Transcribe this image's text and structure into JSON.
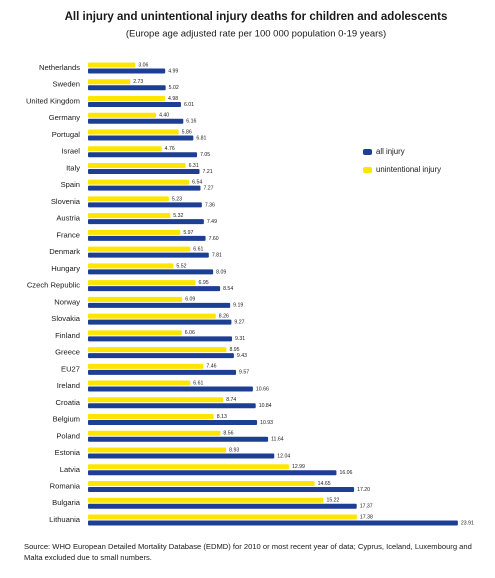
{
  "chart_data": {
    "type": "bar",
    "orientation": "horizontal",
    "title": "All injury and unintentional injury deaths for children and adolescents",
    "subtitle": "(Europe age adjusted rate per 100 000 population 0-19 years)",
    "source": "Source: WHO European Detailed Mortality Database (EDMD) for 2010 or most recent year of data; Cyprus, Iceland, Luxembourg and Malta excluded due to small numbers.",
    "categories": [
      "Netherlands",
      "Sweden",
      "United Kingdom",
      "Germany",
      "Portugal",
      "Israel",
      "Italy",
      "Spain",
      "Slovenia",
      "Austria",
      "France",
      "Denmark",
      "Hungary",
      "Czech Republic",
      "Norway",
      "Slovakia",
      "Finland",
      "Greece",
      "EU27",
      "Ireland",
      "Croatia",
      "Belgium",
      "Poland",
      "Estonia",
      "Latvia",
      "Romania",
      "Bulgaria",
      "Lithuania"
    ],
    "series": [
      {
        "name": "all injury",
        "color": "#1c3f94",
        "values": [
          4.99,
          5.02,
          6.01,
          6.16,
          6.81,
          7.05,
          7.21,
          7.27,
          7.36,
          7.49,
          7.6,
          7.81,
          8.09,
          8.54,
          9.19,
          9.27,
          9.31,
          9.43,
          9.57,
          10.66,
          10.84,
          10.93,
          11.64,
          12.04,
          16.06,
          17.2,
          17.37,
          23.91
        ],
        "value_labels": [
          "4.99",
          "5.02",
          "6.01",
          "6.16",
          "6.81",
          "7.05",
          "7.21",
          "7.27",
          "7.36",
          "7.49",
          "7.60",
          "7.81",
          "8.09",
          "8.54",
          "9.19",
          "9.27",
          "9.31",
          "9.43",
          "9.57",
          "10.66",
          "10.84",
          "10.93",
          "11.64",
          "12.04",
          "16.06",
          "17.20",
          "17.37",
          "23.91"
        ]
      },
      {
        "name": "unintentional injury",
        "color": "#ffe500",
        "values": [
          3.06,
          2.73,
          4.98,
          4.4,
          5.86,
          4.76,
          6.31,
          6.54,
          5.23,
          5.32,
          5.97,
          6.61,
          5.52,
          6.95,
          6.09,
          8.26,
          6.06,
          8.95,
          7.46,
          6.61,
          8.74,
          8.13,
          8.56,
          8.93,
          12.99,
          14.65,
          15.22,
          17.38
        ],
        "value_labels": [
          "3.06",
          "2.73",
          "4.98",
          "4.40",
          "5.86",
          "4.76",
          "6.31",
          "6.54",
          "5.23",
          "5.32",
          "5.97",
          "6.61",
          "5.52",
          "6.95",
          "6.09",
          "8.26",
          "6.06",
          "8.95",
          "7.46",
          "6.61",
          "8.74",
          "8.13",
          "8.56",
          "8.93",
          "12.99",
          "14.65",
          "15.22",
          "17.38"
        ]
      }
    ]
  }
}
